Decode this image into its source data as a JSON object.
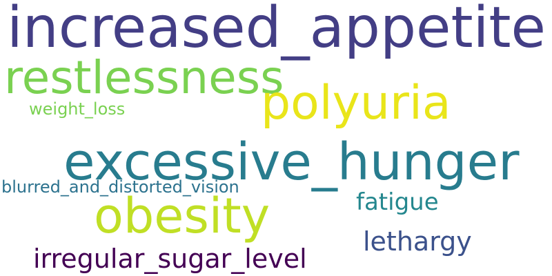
{
  "word_cloud": {
    "background_color": "#ffffff",
    "words": [
      {
        "text": "increased_appetite",
        "color": "#433e85"
      },
      {
        "text": "restlessness",
        "color": "#7ad151"
      },
      {
        "text": "polyuria",
        "color": "#e9e51a"
      },
      {
        "text": "weight_loss",
        "color": "#7ad151"
      },
      {
        "text": "excessive_hunger",
        "color": "#287c8e"
      },
      {
        "text": "blurred_and_distorted_vision",
        "color": "#2c728e"
      },
      {
        "text": "fatigue",
        "color": "#24878e"
      },
      {
        "text": "obesity",
        "color": "#c0df25"
      },
      {
        "text": "lethargy",
        "color": "#3b518b"
      },
      {
        "text": "irregular_sugar_level",
        "color": "#440154"
      }
    ]
  }
}
